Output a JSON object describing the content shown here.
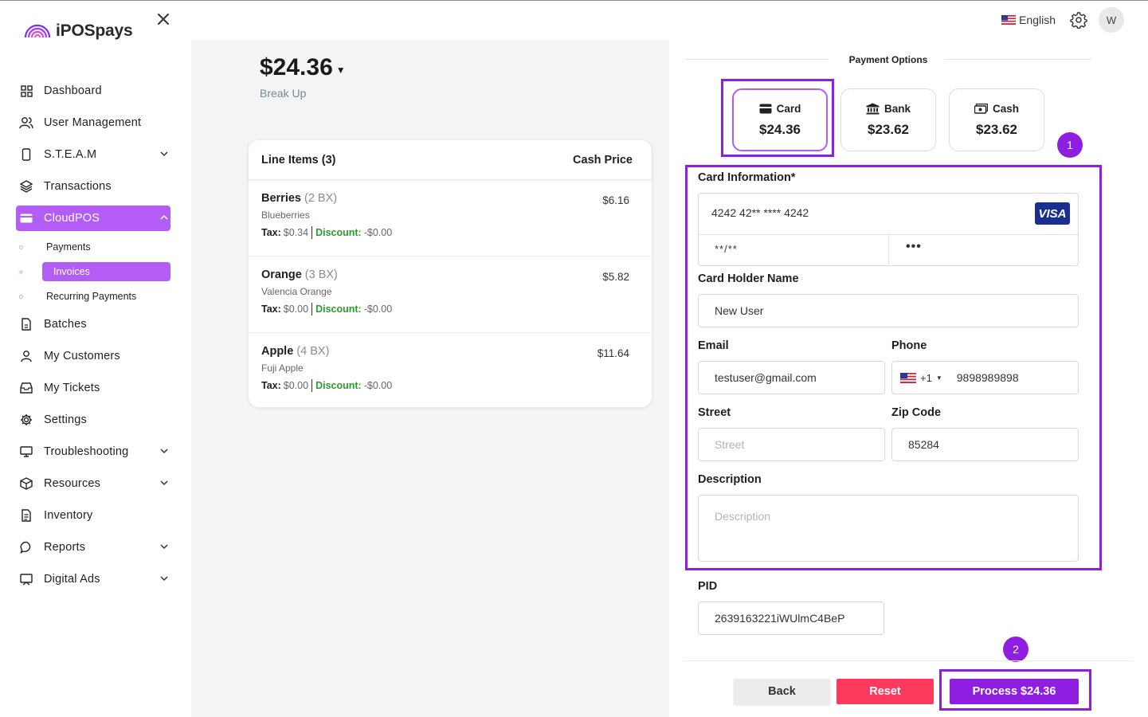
{
  "app": {
    "brand": "iPOSpays"
  },
  "sidebar": {
    "items": [
      {
        "label": "Dashboard",
        "icon": "grid-icon"
      },
      {
        "label": "User Management",
        "icon": "users-icon"
      },
      {
        "label": "S.T.E.A.M",
        "icon": "device-icon",
        "expandable": true
      },
      {
        "label": "Transactions",
        "icon": "layers-icon"
      },
      {
        "label": "CloudPOS",
        "icon": "card-icon",
        "expandable": true,
        "active": true
      },
      {
        "label": "Batches",
        "icon": "file-icon"
      },
      {
        "label": "My Customers",
        "icon": "user-icon"
      },
      {
        "label": "My Tickets",
        "icon": "inbox-icon"
      },
      {
        "label": "Settings",
        "icon": "gear-icon"
      },
      {
        "label": "Troubleshooting",
        "icon": "monitor-icon",
        "expandable": true
      },
      {
        "label": "Resources",
        "icon": "box-icon",
        "expandable": true
      },
      {
        "label": "Inventory",
        "icon": "doc-icon"
      },
      {
        "label": "Reports",
        "icon": "chat-icon",
        "expandable": true
      },
      {
        "label": "Digital Ads",
        "icon": "screen-icon",
        "expandable": true
      }
    ],
    "subitems": [
      {
        "label": "Payments"
      },
      {
        "label": "Invoices",
        "active": true
      },
      {
        "label": "Recurring Payments"
      }
    ]
  },
  "header": {
    "language": "English",
    "avatar_initial": "W"
  },
  "summary": {
    "total": "$24.36",
    "breakup_label": "Break Up"
  },
  "line_items": {
    "header_left": "Line Items (3)",
    "header_right": "Cash Price",
    "items": [
      {
        "name": "Berries",
        "qty": "(2 BX)",
        "desc": "Blueberries",
        "price": "$6.16",
        "tax": "$0.34",
        "discount": "-$0.00"
      },
      {
        "name": "Orange",
        "qty": "(3 BX)",
        "desc": "Valencia Orange",
        "price": "$5.82",
        "tax": "$0.00",
        "discount": "-$0.00"
      },
      {
        "name": "Apple",
        "qty": "(4 BX)",
        "desc": "Fuji Apple",
        "price": "$11.64",
        "tax": "$0.00",
        "discount": "-$0.00"
      }
    ],
    "tax_label": "Tax:",
    "discount_label": "Discount:"
  },
  "payment": {
    "title": "Payment Options",
    "options": [
      {
        "label": "Card",
        "amount": "$24.36",
        "icon": "credit-card-icon",
        "selected": true
      },
      {
        "label": "Bank",
        "amount": "$23.62",
        "icon": "bank-icon"
      },
      {
        "label": "Cash",
        "amount": "$23.62",
        "icon": "cash-icon"
      }
    ],
    "badges": [
      "1",
      "2"
    ]
  },
  "form": {
    "card_info_label": "Card Information*",
    "card_number": "4242 42** **** 4242",
    "card_brand": "VISA",
    "expiry": "**/**",
    "cvc": "•••",
    "holder_label": "Card Holder Name",
    "holder_value": "New User",
    "email_label": "Email",
    "email_value": "testuser@gmail.com",
    "phone_label": "Phone",
    "phone_code": "+1",
    "phone_value": "9898989898",
    "street_label": "Street",
    "street_placeholder": "Street",
    "zip_label": "Zip Code",
    "zip_value": "85284",
    "description_label": "Description",
    "description_placeholder": "Description",
    "pid_label": "PID",
    "pid_value": "2639163221iWUlmC4BeP"
  },
  "actions": {
    "back": "Back",
    "reset": "Reset",
    "process": "Process $24.36"
  },
  "colors": {
    "accent": "#8f1fe0",
    "sidebar_active": "#b45cf6",
    "reset": "#fb3a5e",
    "discount": "#2c9b2c"
  }
}
